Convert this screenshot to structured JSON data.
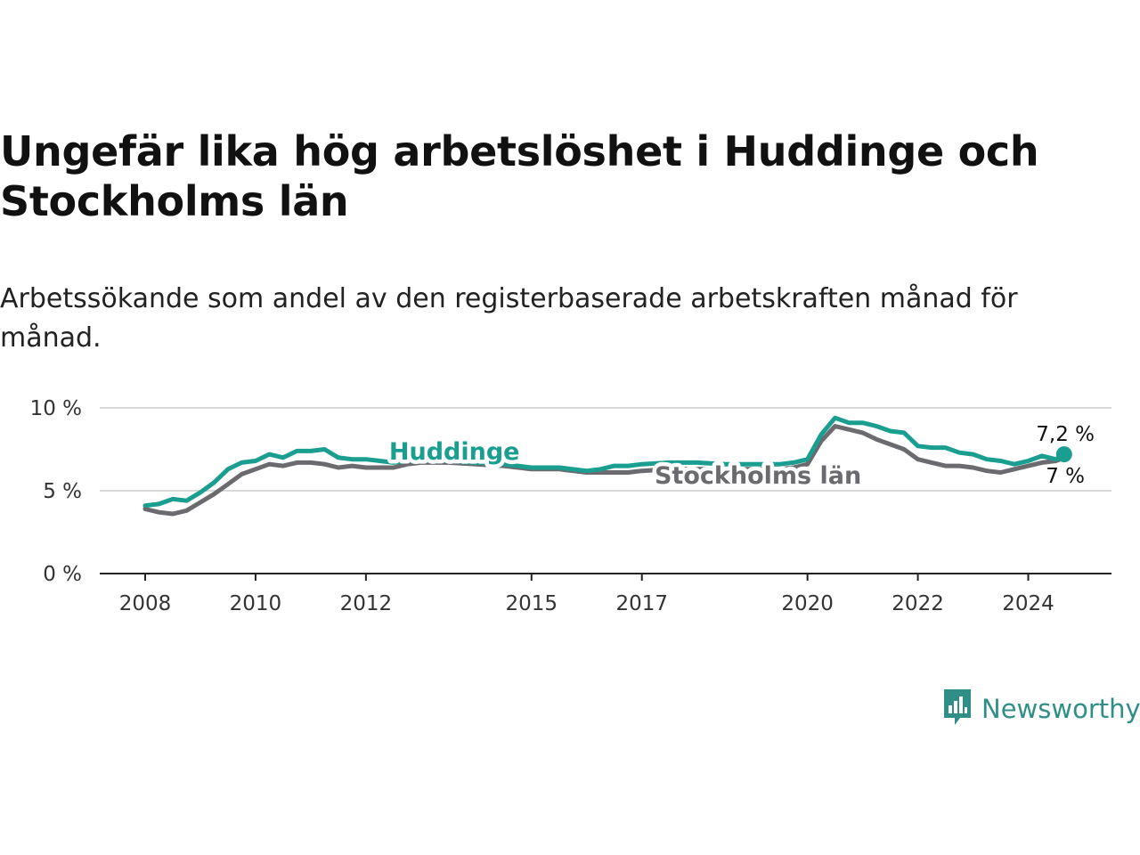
{
  "title": "Ungefär lika hög arbetslöshet i Huddinge och Stockholms län",
  "subtitle": "Arbetssökande som andel av den registerbaserade arbetskraften månad för månad.",
  "brand": {
    "name": "Newsworthy",
    "color": "#2f8f86",
    "icon": "newsworthy-bar-chart-icon"
  },
  "colors": {
    "huddinge": "#1a9e90",
    "stockholm": "#6b6a6f",
    "grid": "#d9d9d9",
    "axis": "#222222"
  },
  "chart_data": {
    "type": "line",
    "title": "Ungefär lika hög arbetslöshet i Huddinge och Stockholms län",
    "xlabel": "",
    "ylabel": "",
    "xlim": [
      2008.0,
      2024.75
    ],
    "ylim": [
      0,
      10
    ],
    "x_ticks": [
      2008,
      2010,
      2012,
      2015,
      2017,
      2020,
      2022,
      2024
    ],
    "x_tick_labels": [
      "2008",
      "2010",
      "2012",
      "2015",
      "2017",
      "2020",
      "2022",
      "2024"
    ],
    "y_ticks": [
      0,
      5,
      10
    ],
    "y_tick_labels": [
      "0 %",
      "5 %",
      "10 %"
    ],
    "grid": "horizontal",
    "legend": "direct labels on lines",
    "series": [
      {
        "name": "Huddinge",
        "color": "#1a9e90",
        "end_label": "7,2 %",
        "points": [
          [
            2008.0,
            4.1
          ],
          [
            2008.25,
            4.2
          ],
          [
            2008.5,
            4.5
          ],
          [
            2008.75,
            4.4
          ],
          [
            2009.0,
            4.9
          ],
          [
            2009.25,
            5.5
          ],
          [
            2009.5,
            6.3
          ],
          [
            2009.75,
            6.7
          ],
          [
            2010.0,
            6.8
          ],
          [
            2010.25,
            7.2
          ],
          [
            2010.5,
            7.0
          ],
          [
            2010.75,
            7.4
          ],
          [
            2011.0,
            7.4
          ],
          [
            2011.25,
            7.5
          ],
          [
            2011.5,
            7.0
          ],
          [
            2011.75,
            6.9
          ],
          [
            2012.0,
            6.9
          ],
          [
            2012.25,
            6.8
          ],
          [
            2012.5,
            6.7
          ],
          [
            2012.75,
            6.8
          ],
          [
            2013.0,
            6.9
          ],
          [
            2013.5,
            6.8
          ],
          [
            2014.0,
            6.7
          ],
          [
            2014.5,
            6.6
          ],
          [
            2015.0,
            6.4
          ],
          [
            2015.25,
            6.4
          ],
          [
            2015.5,
            6.4
          ],
          [
            2015.75,
            6.3
          ],
          [
            2016.0,
            6.2
          ],
          [
            2016.25,
            6.3
          ],
          [
            2016.5,
            6.5
          ],
          [
            2016.75,
            6.5
          ],
          [
            2017.0,
            6.6
          ],
          [
            2017.5,
            6.7
          ],
          [
            2018.0,
            6.7
          ],
          [
            2018.5,
            6.6
          ],
          [
            2019.0,
            6.6
          ],
          [
            2019.5,
            6.6
          ],
          [
            2019.75,
            6.7
          ],
          [
            2020.0,
            6.9
          ],
          [
            2020.25,
            8.4
          ],
          [
            2020.5,
            9.4
          ],
          [
            2020.75,
            9.1
          ],
          [
            2021.0,
            9.1
          ],
          [
            2021.25,
            8.9
          ],
          [
            2021.5,
            8.6
          ],
          [
            2021.75,
            8.5
          ],
          [
            2022.0,
            7.7
          ],
          [
            2022.25,
            7.6
          ],
          [
            2022.5,
            7.6
          ],
          [
            2022.75,
            7.3
          ],
          [
            2023.0,
            7.2
          ],
          [
            2023.25,
            6.9
          ],
          [
            2023.5,
            6.8
          ],
          [
            2023.75,
            6.6
          ],
          [
            2024.0,
            6.8
          ],
          [
            2024.25,
            7.1
          ],
          [
            2024.5,
            6.9
          ],
          [
            2024.65,
            7.2
          ]
        ]
      },
      {
        "name": "Stockholms län",
        "color": "#6b6a6f",
        "end_label": "7 %",
        "points": [
          [
            2008.0,
            3.9
          ],
          [
            2008.25,
            3.7
          ],
          [
            2008.5,
            3.6
          ],
          [
            2008.75,
            3.8
          ],
          [
            2009.0,
            4.3
          ],
          [
            2009.25,
            4.8
          ],
          [
            2009.5,
            5.4
          ],
          [
            2009.75,
            6.0
          ],
          [
            2010.0,
            6.3
          ],
          [
            2010.25,
            6.6
          ],
          [
            2010.5,
            6.5
          ],
          [
            2010.75,
            6.7
          ],
          [
            2011.0,
            6.7
          ],
          [
            2011.25,
            6.6
          ],
          [
            2011.5,
            6.4
          ],
          [
            2011.75,
            6.5
          ],
          [
            2012.0,
            6.4
          ],
          [
            2012.25,
            6.4
          ],
          [
            2012.5,
            6.4
          ],
          [
            2012.75,
            6.6
          ],
          [
            2013.0,
            6.7
          ],
          [
            2013.5,
            6.7
          ],
          [
            2014.0,
            6.6
          ],
          [
            2014.5,
            6.5
          ],
          [
            2015.0,
            6.3
          ],
          [
            2015.25,
            6.3
          ],
          [
            2015.5,
            6.3
          ],
          [
            2015.75,
            6.2
          ],
          [
            2016.0,
            6.1
          ],
          [
            2016.25,
            6.1
          ],
          [
            2016.5,
            6.1
          ],
          [
            2016.75,
            6.1
          ],
          [
            2017.0,
            6.2
          ],
          [
            2017.5,
            6.3
          ],
          [
            2018.0,
            6.3
          ],
          [
            2018.5,
            6.3
          ],
          [
            2019.0,
            6.3
          ],
          [
            2019.5,
            6.3
          ],
          [
            2019.75,
            6.4
          ],
          [
            2020.0,
            6.6
          ],
          [
            2020.25,
            8.0
          ],
          [
            2020.5,
            8.9
          ],
          [
            2020.75,
            8.7
          ],
          [
            2021.0,
            8.5
          ],
          [
            2021.25,
            8.1
          ],
          [
            2021.5,
            7.8
          ],
          [
            2021.75,
            7.5
          ],
          [
            2022.0,
            6.9
          ],
          [
            2022.25,
            6.7
          ],
          [
            2022.5,
            6.5
          ],
          [
            2022.75,
            6.5
          ],
          [
            2023.0,
            6.4
          ],
          [
            2023.25,
            6.2
          ],
          [
            2023.5,
            6.1
          ],
          [
            2023.75,
            6.3
          ],
          [
            2024.0,
            6.5
          ],
          [
            2024.25,
            6.7
          ],
          [
            2024.5,
            6.8
          ],
          [
            2024.65,
            7.0
          ]
        ]
      }
    ]
  }
}
